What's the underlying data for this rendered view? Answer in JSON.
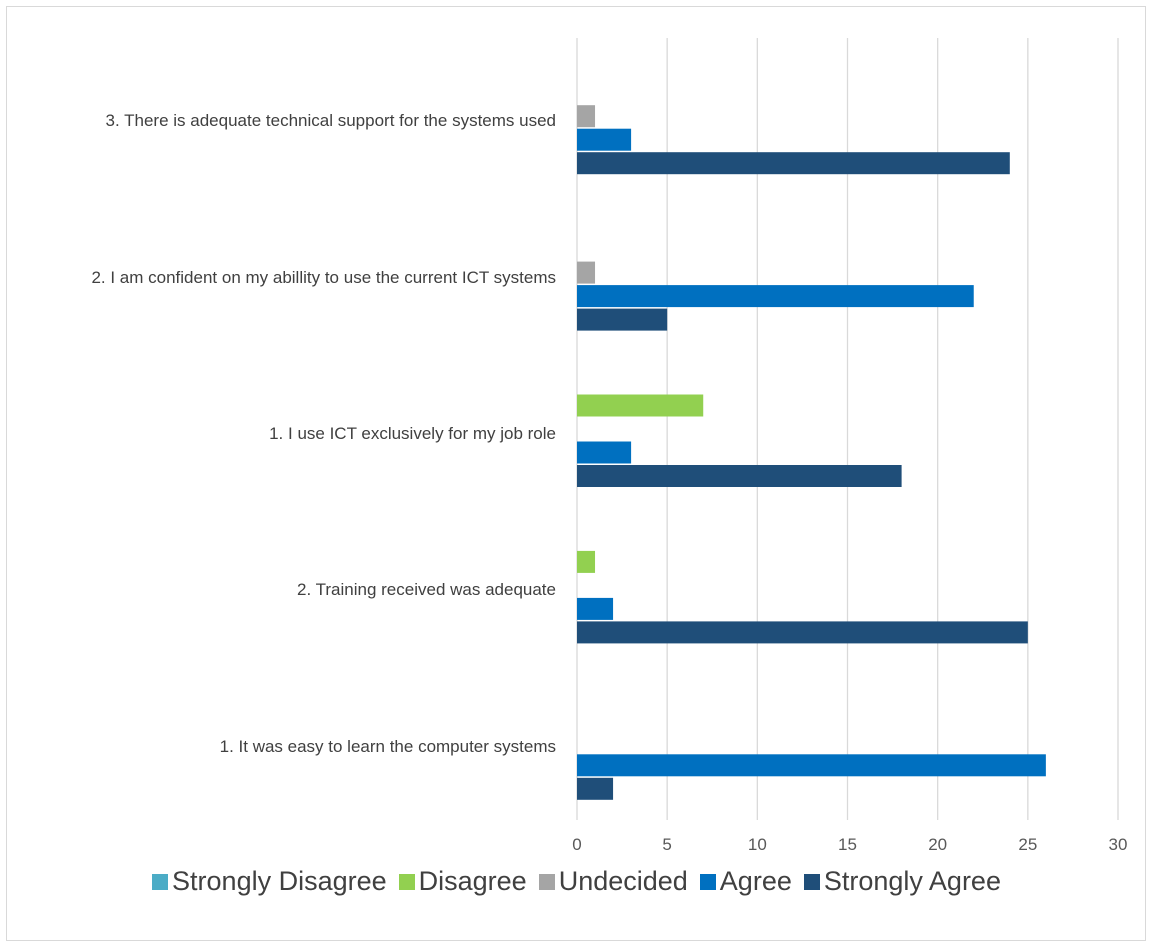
{
  "chart_data": {
    "type": "hbar",
    "categories": [
      "3. There is adequate technical support for the systems used",
      "2. I am confident on my abillity to use the current ICT systems",
      "1. I use ICT exclusively for my job role",
      "2. Training received was adequate",
      "1. It was easy to learn the computer systems"
    ],
    "series": [
      {
        "name": "Strongly Disagree",
        "color": "#4bacc6",
        "values": [
          0,
          0,
          0,
          0,
          0
        ]
      },
      {
        "name": "Disagree",
        "color": "#92d050",
        "values": [
          0,
          0,
          7,
          1,
          0
        ]
      },
      {
        "name": "Undecided",
        "color": "#a5a5a5",
        "values": [
          1,
          1,
          0,
          0,
          0
        ]
      },
      {
        "name": "Agree",
        "color": "#0070c0",
        "values": [
          3,
          22,
          3,
          2,
          26
        ]
      },
      {
        "name": "Strongly Agree",
        "color": "#1f4e79",
        "values": [
          24,
          5,
          18,
          25,
          2
        ]
      }
    ],
    "xlim": [
      0,
      30
    ],
    "xticks": [
      0,
      5,
      10,
      15,
      20,
      25,
      30
    ],
    "grid": true,
    "legend": "bottom"
  }
}
